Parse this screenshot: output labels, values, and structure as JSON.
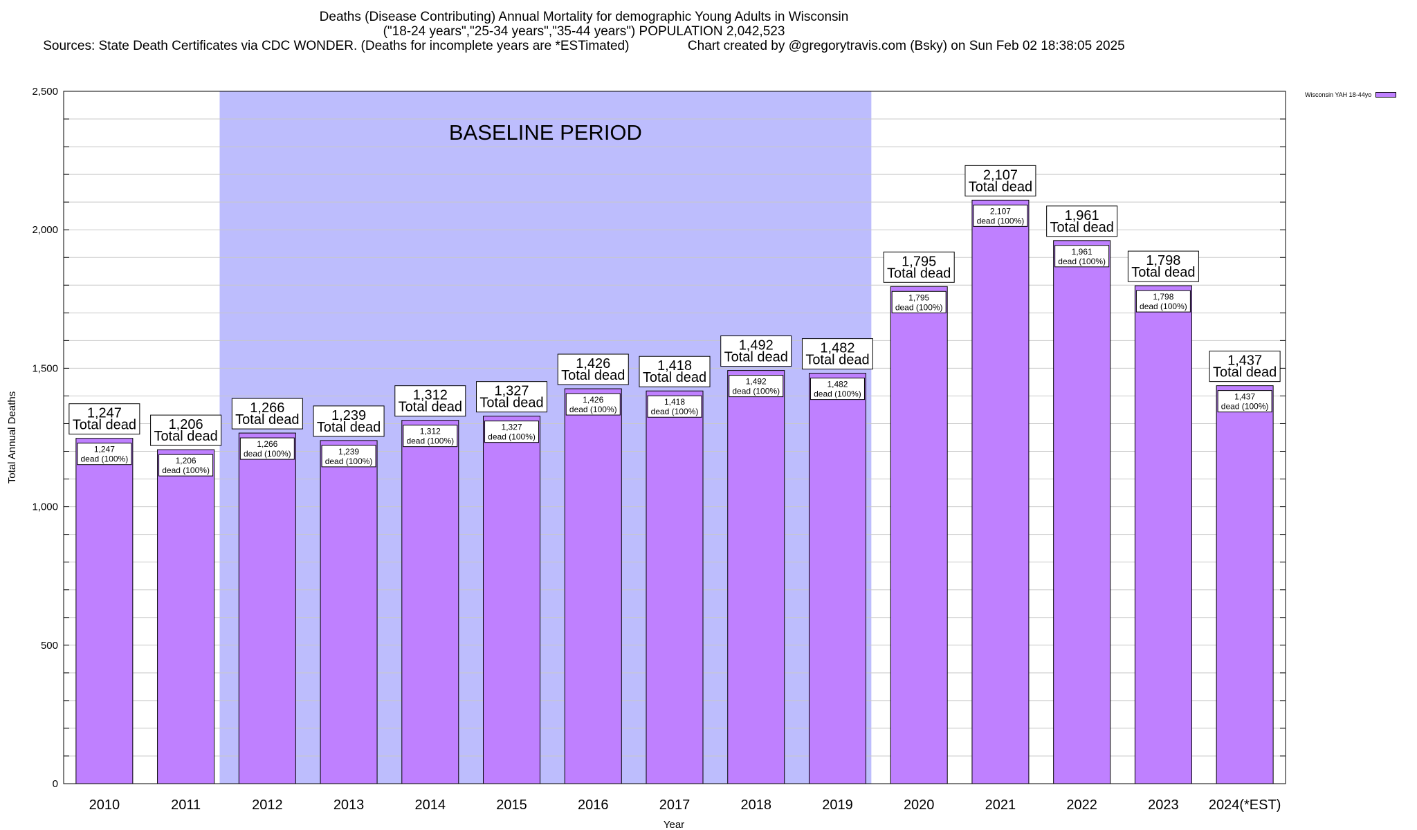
{
  "colors": {
    "bar_fill": "#bf80ff",
    "baseline_fill": "#bdbdfd",
    "bar_stroke": "#000000",
    "grid": "#c8c8c8"
  },
  "chart_data": {
    "type": "bar",
    "title_lines": [
      "Deaths (Disease Contributing) Annual Mortality for demographic Young Adults in Wisconsin",
      "(\"18-24 years\",\"25-34 years\",\"35-44 years\") POPULATION 2,042,523",
      "Sources: State Death Certificates via CDC WONDER. (Deaths for incomplete years are *ESTimated)                Chart created by @gregorytravis.com (Bsky) on Sun Feb 02 18:38:05 2025"
    ],
    "xlabel": "Year",
    "ylabel": "Total Annual Deaths",
    "ylim": [
      0,
      2500
    ],
    "yticks": [
      0,
      500,
      1000,
      1500,
      2000,
      2500
    ],
    "ytick_labels": [
      "0",
      "500",
      "1,000",
      "1,500",
      "2,000",
      "2,500"
    ],
    "grid": true,
    "legend_placement": "top-right",
    "categories": [
      "2010",
      "2011",
      "2012",
      "2013",
      "2014",
      "2015",
      "2016",
      "2017",
      "2018",
      "2019",
      "2020",
      "2021",
      "2022",
      "2023",
      "2024(*EST)"
    ],
    "series": [
      {
        "name": "Wisconsin YAH 18-44yo",
        "values": [
          1247,
          1206,
          1266,
          1239,
          1312,
          1327,
          1426,
          1418,
          1492,
          1482,
          1795,
          2107,
          1961,
          1798,
          1437
        ]
      }
    ],
    "value_labels": [
      "1,247",
      "1,206",
      "1,266",
      "1,239",
      "1,312",
      "1,327",
      "1,426",
      "1,418",
      "1,492",
      "1,482",
      "1,795",
      "2,107",
      "1,961",
      "1,798",
      "1,437"
    ],
    "total_label_text": "Total dead",
    "inner_label_text": "dead (100%)",
    "baseline": {
      "label": "BASELINE PERIOD",
      "start": "2012",
      "end": "2019"
    }
  }
}
